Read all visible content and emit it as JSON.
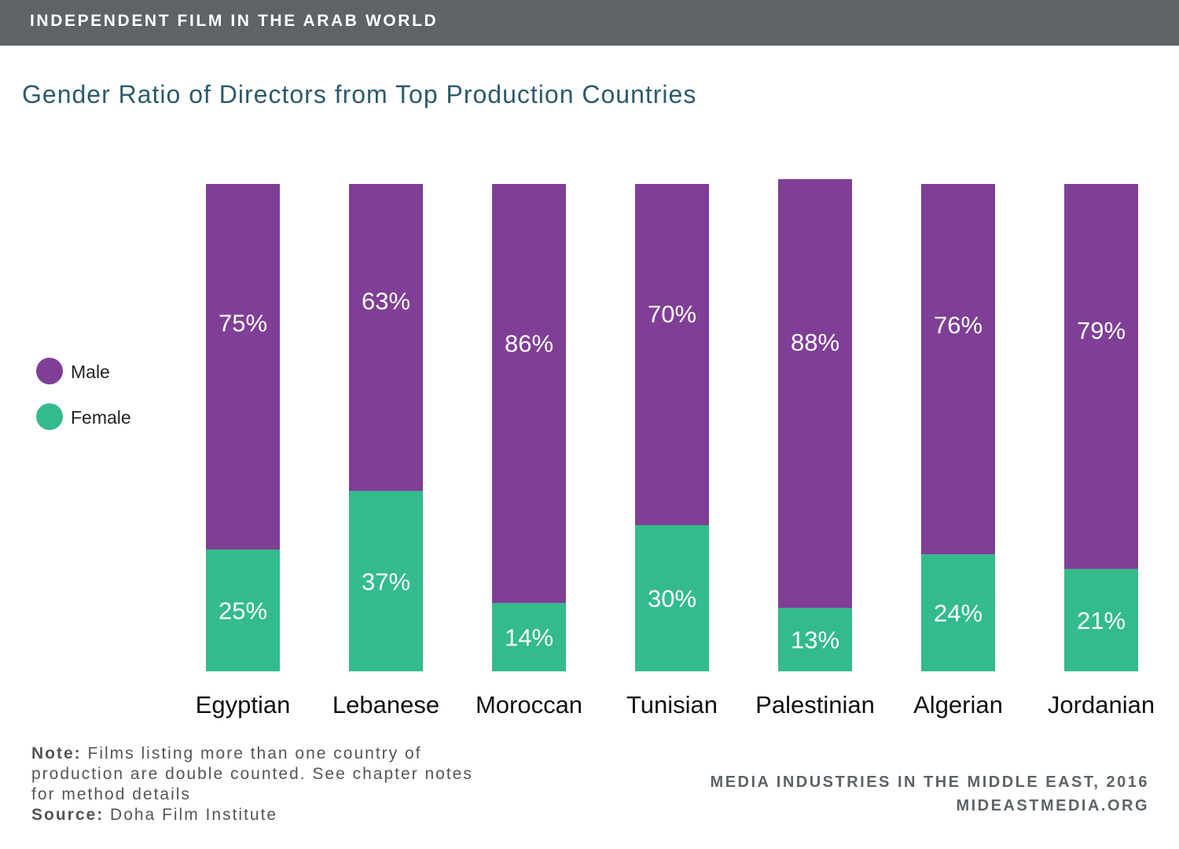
{
  "header": {
    "title": "INDEPENDENT FILM IN THE ARAB WORLD"
  },
  "chart_data": {
    "type": "bar",
    "stacked": true,
    "title": "Gender Ratio of Directors from Top Production Countries",
    "categories": [
      "Egyptian",
      "Lebanese",
      "Moroccan",
      "Tunisian",
      "Palestinian",
      "Algerian",
      "Jordanian"
    ],
    "series": [
      {
        "name": "Female",
        "values": [
          25,
          37,
          14,
          30,
          13,
          24,
          21
        ],
        "labels": [
          "25%",
          "37%",
          "14%",
          "30%",
          "13%",
          "24%",
          "21%"
        ],
        "color": "#33bb8c"
      },
      {
        "name": "Male",
        "values": [
          75,
          63,
          86,
          70,
          88,
          76,
          79
        ],
        "labels": [
          "75%",
          "63%",
          "86%",
          "70%",
          "88%",
          "76%",
          "79%"
        ],
        "color": "#7f3f96"
      }
    ],
    "ylim": [
      0,
      100
    ],
    "legend_position": "left",
    "grid": false
  },
  "legend": {
    "items": [
      {
        "label": "Male",
        "color": "#7f3f96"
      },
      {
        "label": "Female",
        "color": "#33bb8c"
      }
    ]
  },
  "note": {
    "note_label": "Note:",
    "note_text": "Films listing more than one country of production are double counted. See chapter notes for method details",
    "source_label": "Source:",
    "source_text": "Doha Film Institute"
  },
  "footer": {
    "line1": "MEDIA INDUSTRIES IN THE MIDDLE EAST, 2016",
    "line2": "MIDEASTMEDIA.ORG"
  }
}
